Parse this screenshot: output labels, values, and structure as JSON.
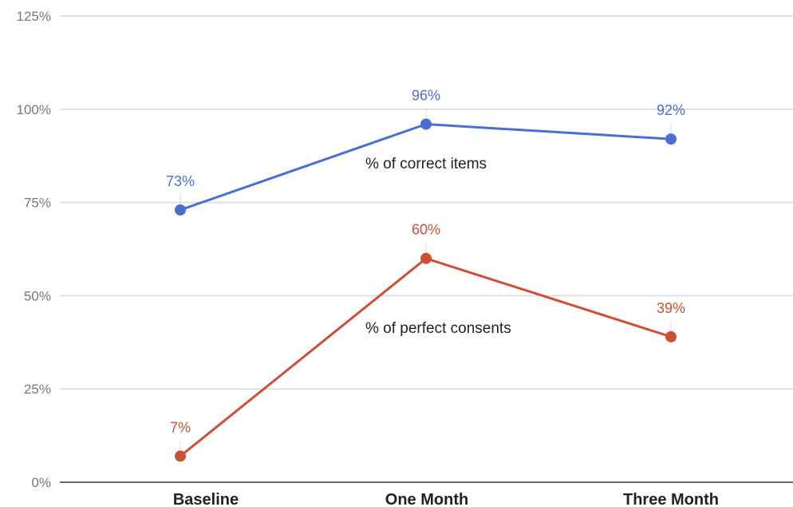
{
  "chart_data": {
    "type": "line",
    "categories": [
      "Baseline",
      "One Month",
      "Three Month"
    ],
    "yticks": [
      "0%",
      "25%",
      "50%",
      "75%",
      "100%",
      "125%"
    ],
    "ylim": [
      0,
      125
    ],
    "grid": true,
    "series": [
      {
        "name": "% of correct items",
        "color": "#4a6fd1",
        "values": [
          73,
          96,
          92
        ],
        "labels": [
          "73%",
          "96%",
          "92%"
        ]
      },
      {
        "name": "% of perfect consents",
        "color": "#cf4f35",
        "values": [
          7,
          60,
          39
        ],
        "labels": [
          "7%",
          "60%",
          "39%"
        ]
      }
    ]
  }
}
